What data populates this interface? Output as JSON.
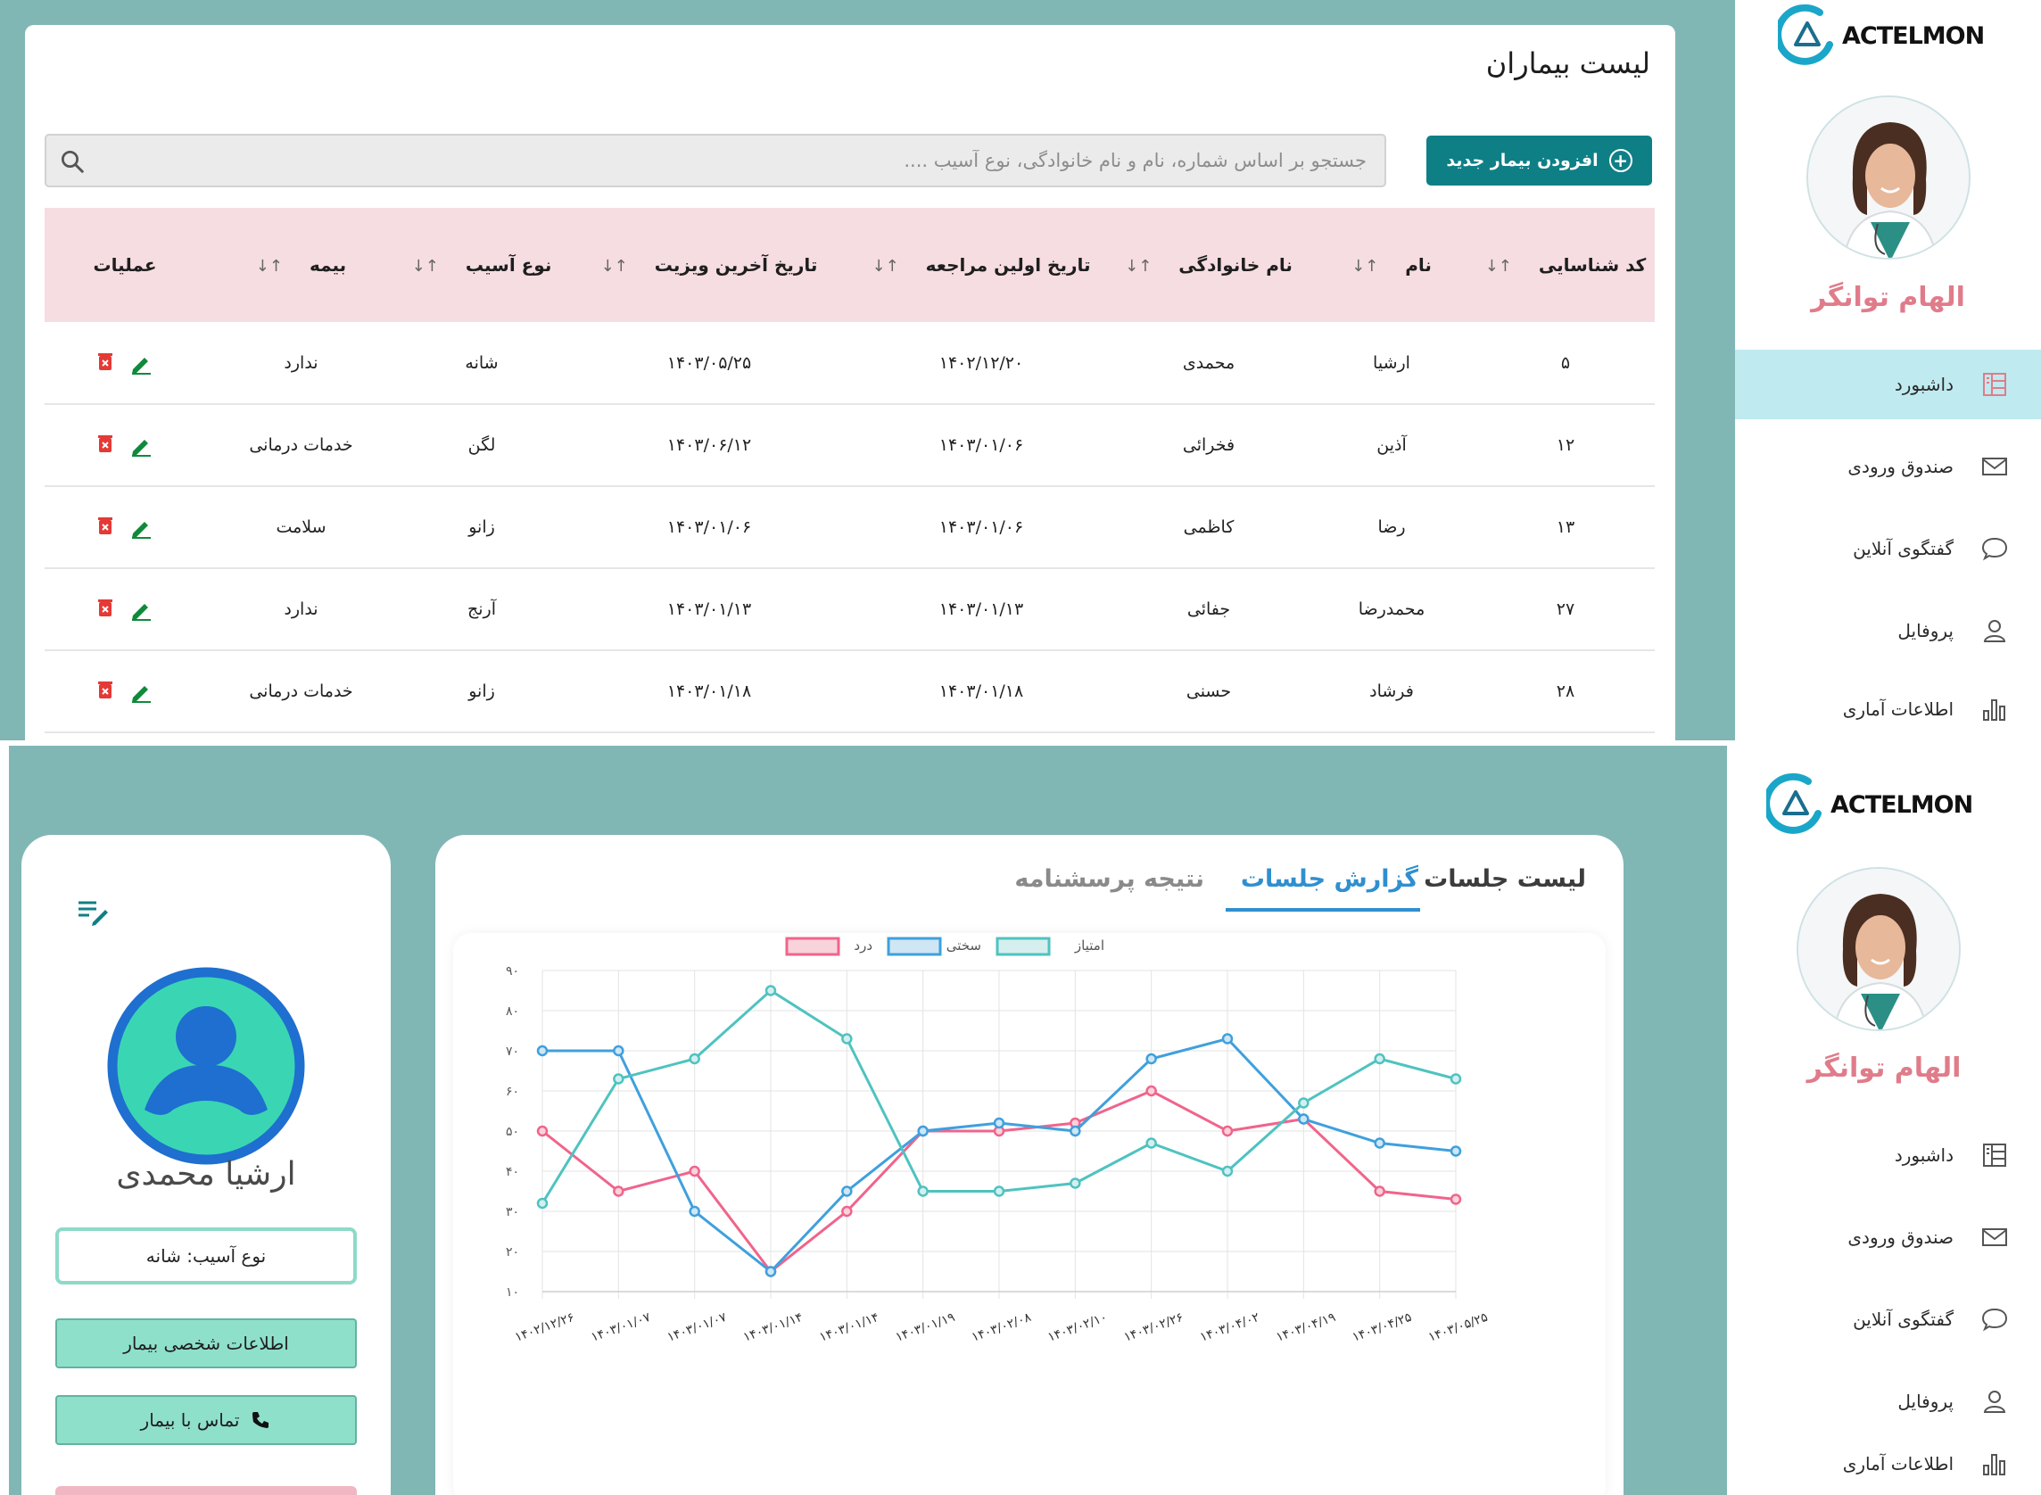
{
  "top": {
    "title": "لیست بیماران",
    "add_button": "افزودن بیمار جدید",
    "search_placeholder": "جستجو بر اساس شماره، نام و نام خانوادگی، نوع آسیب ....",
    "columns": [
      "کد شناسایی",
      "نام",
      "نام خانوادگی",
      "تاریخ اولین مراجعه",
      "تاریخ آخرین ویزیت",
      "نوع آسیب",
      "بیمه",
      "عملیات"
    ],
    "rows": [
      [
        "۵",
        "ارشیا",
        "محمدی",
        "۱۴۰۲/۱۲/۲۰",
        "۱۴۰۳/۰۵/۲۵",
        "شانه",
        "ندارد"
      ],
      [
        "۱۲",
        "آذین",
        "فخرائی",
        "۱۴۰۳/۰۱/۰۶",
        "۱۴۰۳/۰۶/۱۲",
        "لگن",
        "خدمات درمانی"
      ],
      [
        "۱۳",
        "رضا",
        "کاظمی",
        "۱۴۰۳/۰۱/۰۶",
        "۱۴۰۳/۰۱/۰۶",
        "زانو",
        "سلامت"
      ],
      [
        "۲۷",
        "محمدرضا",
        "جفائی",
        "۱۴۰۳/۰۱/۱۳",
        "۱۴۰۳/۰۱/۱۳",
        "آرنج",
        "ندارد"
      ],
      [
        "۲۸",
        "فرشاد",
        "حسنی",
        "۱۴۰۳/۰۱/۱۸",
        "۱۴۰۳/۰۱/۱۸",
        "زانو",
        "خدمات درمانی"
      ]
    ]
  },
  "sidebar": {
    "logo": "ACTELMON",
    "doctor_name": "الهام توانگر",
    "items": [
      {
        "label": "داشبورد",
        "icon": "dashboard-icon"
      },
      {
        "label": "صندوق ورودی",
        "icon": "mail-icon"
      },
      {
        "label": "گفتگوی آنلاین",
        "icon": "chat-icon"
      },
      {
        "label": "پروفایل",
        "icon": "user-icon"
      },
      {
        "label": "اطلاعات آماری",
        "icon": "bar-chart-icon"
      }
    ]
  },
  "profile": {
    "name": "ارشیا محمدی",
    "injury_label": "نوع آسیب: شانه",
    "personal_info_button": "اطلاعات شخصی بیمار",
    "contact_button": "تماس با بیمار"
  },
  "tabs": [
    "لیست جلسات",
    "گزارش جلسات",
    "نتیجه پرسشنامه"
  ],
  "colors": {
    "accent": "#0f7f86",
    "bg": "#80b7b5",
    "pain": "#f0648c",
    "stiffness": "#3fa0dd",
    "score": "#4ec3c0",
    "tab_active": "#2f8fd0"
  },
  "chart_data": {
    "type": "line",
    "categories": [
      "۱۴۰۲/۱۲/۲۶",
      "۱۴۰۳/۰۱/۰۷",
      "۱۴۰۳/۰۱/۰۷",
      "۱۴۰۳/۰۱/۱۴",
      "۱۴۰۳/۰۱/۱۴",
      "۱۴۰۳/۰۱/۱۹",
      "۱۴۰۳/۰۲/۰۸",
      "۱۴۰۳/۰۲/۱۰",
      "۱۴۰۳/۰۲/۲۶",
      "۱۴۰۳/۰۴/۰۲",
      "۱۴۰۳/۰۴/۱۹",
      "۱۴۰۳/۰۴/۲۵",
      "۱۴۰۳/۰۵/۲۵"
    ],
    "ylim": [
      10,
      90
    ],
    "yticks": [
      10,
      20,
      30,
      40,
      50,
      60,
      70,
      80,
      90
    ],
    "ytick_labels": [
      "۱۰",
      "۲۰",
      "۳۰",
      "۴۰",
      "۵۰",
      "۶۰",
      "۷۰",
      "۸۰",
      "۹۰"
    ],
    "legend_position": "top-center",
    "series": [
      {
        "name": "درد",
        "color": "#f0648c",
        "fill": "#f8d3dc",
        "values": [
          50,
          35,
          40,
          15,
          30,
          50,
          50,
          52,
          60,
          50,
          53,
          35,
          33
        ]
      },
      {
        "name": "سختی",
        "color": "#3fa0dd",
        "fill": "#cfe6f5",
        "values": [
          70,
          70,
          30,
          15,
          35,
          50,
          52,
          50,
          68,
          73,
          53,
          47,
          45
        ]
      },
      {
        "name": "امتیاز",
        "color": "#4ec3c0",
        "fill": "#d5efee",
        "values": [
          32,
          63,
          68,
          85,
          73,
          35,
          35,
          37,
          47,
          40,
          57,
          68,
          63
        ]
      }
    ]
  }
}
